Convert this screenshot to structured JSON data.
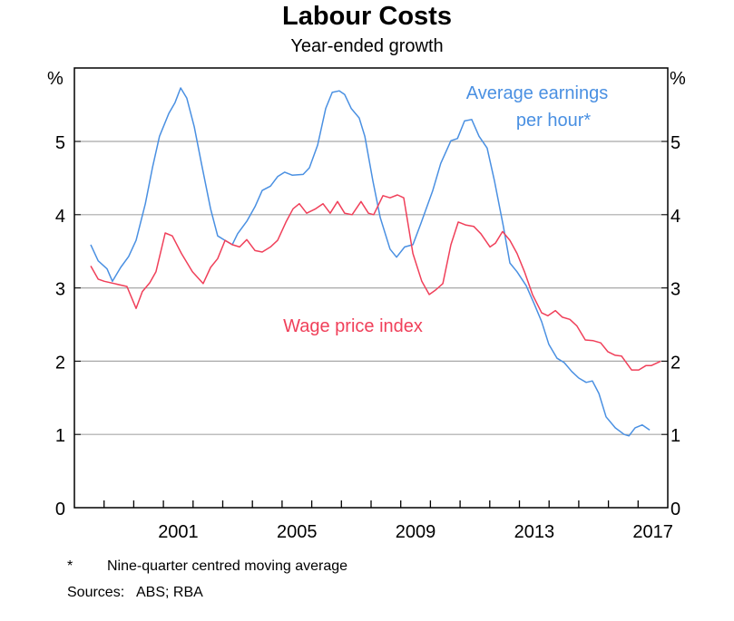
{
  "chart_data": {
    "type": "line",
    "title": "Labour Costs",
    "subtitle": "Year-ended growth",
    "ylabel_left": "%",
    "ylabel_right": "%",
    "xlim": [
      1998,
      2018
    ],
    "ylim": [
      0,
      6
    ],
    "yticks": [
      0,
      1,
      2,
      3,
      4,
      5
    ],
    "xtick_labels": [
      "2001",
      "2005",
      "2009",
      "2013",
      "2017"
    ],
    "grid": true,
    "series": [
      {
        "name": "Average earnings per hour*",
        "label_lines": [
          "Average earnings",
          "per hour*"
        ],
        "color": "#4a90e2",
        "points": [
          [
            1998.55,
            3.59
          ],
          [
            1998.8,
            3.37
          ],
          [
            1999.1,
            3.26
          ],
          [
            1999.28,
            3.09
          ],
          [
            1999.56,
            3.28
          ],
          [
            1999.83,
            3.43
          ],
          [
            2000.08,
            3.65
          ],
          [
            2000.39,
            4.15
          ],
          [
            2000.63,
            4.64
          ],
          [
            2000.87,
            5.07
          ],
          [
            2001.18,
            5.38
          ],
          [
            2001.39,
            5.53
          ],
          [
            2001.58,
            5.73
          ],
          [
            2001.79,
            5.59
          ],
          [
            2002.04,
            5.2
          ],
          [
            2002.28,
            4.7
          ],
          [
            2002.59,
            4.08
          ],
          [
            2002.83,
            3.71
          ],
          [
            2003.11,
            3.64
          ],
          [
            2003.32,
            3.59
          ],
          [
            2003.5,
            3.74
          ],
          [
            2003.81,
            3.91
          ],
          [
            2004.09,
            4.11
          ],
          [
            2004.33,
            4.33
          ],
          [
            2004.61,
            4.39
          ],
          [
            2004.85,
            4.52
          ],
          [
            2005.09,
            4.58
          ],
          [
            2005.34,
            4.54
          ],
          [
            2005.71,
            4.55
          ],
          [
            2005.92,
            4.64
          ],
          [
            2006.2,
            4.95
          ],
          [
            2006.47,
            5.45
          ],
          [
            2006.69,
            5.67
          ],
          [
            2006.93,
            5.69
          ],
          [
            2007.11,
            5.64
          ],
          [
            2007.33,
            5.45
          ],
          [
            2007.6,
            5.32
          ],
          [
            2007.79,
            5.07
          ],
          [
            2008.06,
            4.46
          ],
          [
            2008.31,
            3.96
          ],
          [
            2008.64,
            3.53
          ],
          [
            2008.86,
            3.42
          ],
          [
            2009.13,
            3.56
          ],
          [
            2009.41,
            3.59
          ],
          [
            2009.68,
            3.88
          ],
          [
            2010.08,
            4.33
          ],
          [
            2010.35,
            4.7
          ],
          [
            2010.69,
            5.01
          ],
          [
            2010.91,
            5.04
          ],
          [
            2011.15,
            5.28
          ],
          [
            2011.39,
            5.3
          ],
          [
            2011.64,
            5.07
          ],
          [
            2011.91,
            4.91
          ],
          [
            2012.16,
            4.46
          ],
          [
            2012.46,
            3.84
          ],
          [
            2012.68,
            3.34
          ],
          [
            2012.92,
            3.22
          ],
          [
            2013.23,
            3.03
          ],
          [
            2013.5,
            2.78
          ],
          [
            2013.75,
            2.54
          ],
          [
            2013.99,
            2.23
          ],
          [
            2014.27,
            2.04
          ],
          [
            2014.51,
            1.98
          ],
          [
            2014.76,
            1.86
          ],
          [
            2015.0,
            1.77
          ],
          [
            2015.25,
            1.71
          ],
          [
            2015.46,
            1.73
          ],
          [
            2015.68,
            1.56
          ],
          [
            2015.92,
            1.24
          ],
          [
            2016.23,
            1.09
          ],
          [
            2016.53,
            1.0
          ],
          [
            2016.69,
            0.98
          ],
          [
            2016.9,
            1.09
          ],
          [
            2017.14,
            1.13
          ],
          [
            2017.39,
            1.06
          ]
        ]
      },
      {
        "name": "Wage price index",
        "label_lines": [
          "Wage price index"
        ],
        "color": "#f0405a",
        "points": [
          [
            1998.55,
            3.3
          ],
          [
            1998.8,
            3.12
          ],
          [
            1999.01,
            3.09
          ],
          [
            1999.77,
            3.02
          ],
          [
            2000.08,
            2.72
          ],
          [
            2000.29,
            2.95
          ],
          [
            2000.54,
            3.07
          ],
          [
            2000.75,
            3.22
          ],
          [
            2001.06,
            3.75
          ],
          [
            2001.3,
            3.71
          ],
          [
            2001.61,
            3.47
          ],
          [
            2001.98,
            3.22
          ],
          [
            2002.34,
            3.06
          ],
          [
            2002.59,
            3.28
          ],
          [
            2002.83,
            3.4
          ],
          [
            2003.08,
            3.65
          ],
          [
            2003.32,
            3.59
          ],
          [
            2003.57,
            3.56
          ],
          [
            2003.81,
            3.66
          ],
          [
            2004.09,
            3.51
          ],
          [
            2004.33,
            3.49
          ],
          [
            2004.61,
            3.56
          ],
          [
            2004.85,
            3.65
          ],
          [
            2005.13,
            3.9
          ],
          [
            2005.37,
            4.08
          ],
          [
            2005.58,
            4.15
          ],
          [
            2005.83,
            4.02
          ],
          [
            2006.13,
            4.08
          ],
          [
            2006.38,
            4.15
          ],
          [
            2006.62,
            4.02
          ],
          [
            2006.87,
            4.18
          ],
          [
            2007.11,
            4.02
          ],
          [
            2007.36,
            4.0
          ],
          [
            2007.66,
            4.18
          ],
          [
            2007.91,
            4.02
          ],
          [
            2008.09,
            4.0
          ],
          [
            2008.4,
            4.26
          ],
          [
            2008.64,
            4.23
          ],
          [
            2008.89,
            4.27
          ],
          [
            2009.1,
            4.23
          ],
          [
            2009.41,
            3.47
          ],
          [
            2009.71,
            3.09
          ],
          [
            2009.96,
            2.91
          ],
          [
            2010.17,
            2.97
          ],
          [
            2010.42,
            3.06
          ],
          [
            2010.69,
            3.59
          ],
          [
            2010.94,
            3.9
          ],
          [
            2011.18,
            3.86
          ],
          [
            2011.46,
            3.84
          ],
          [
            2011.7,
            3.74
          ],
          [
            2012.01,
            3.56
          ],
          [
            2012.19,
            3.61
          ],
          [
            2012.43,
            3.77
          ],
          [
            2012.68,
            3.65
          ],
          [
            2012.92,
            3.47
          ],
          [
            2013.17,
            3.22
          ],
          [
            2013.44,
            2.91
          ],
          [
            2013.75,
            2.66
          ],
          [
            2013.96,
            2.62
          ],
          [
            2014.21,
            2.69
          ],
          [
            2014.45,
            2.6
          ],
          [
            2014.7,
            2.57
          ],
          [
            2014.94,
            2.48
          ],
          [
            2015.22,
            2.29
          ],
          [
            2015.49,
            2.28
          ],
          [
            2015.74,
            2.25
          ],
          [
            2015.98,
            2.13
          ],
          [
            2016.23,
            2.08
          ],
          [
            2016.44,
            2.07
          ],
          [
            2016.78,
            1.88
          ],
          [
            2017.02,
            1.88
          ],
          [
            2017.27,
            1.94
          ],
          [
            2017.45,
            1.94
          ],
          [
            2017.76,
            2.0
          ]
        ]
      }
    ]
  },
  "footnotes": {
    "asterisk": "*",
    "note": "Nine-quarter centred moving average",
    "sources_label": "Sources:",
    "sources": "ABS; RBA"
  }
}
